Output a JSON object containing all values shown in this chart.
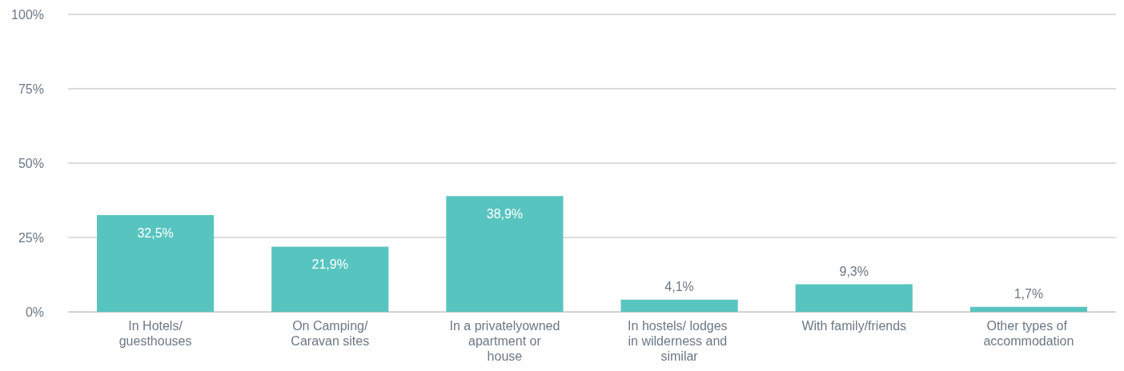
{
  "chart_data": {
    "type": "bar",
    "categories": [
      "In Hotels/guesthouses",
      "On Camping/Caravan sites",
      "In a privatelyowned apartment or house",
      "In hostels/ lodges in wilderness and similar",
      "With family/friends",
      "Other types of accommodation"
    ],
    "values": [
      32.5,
      21.9,
      38.9,
      4.1,
      9.3,
      1.7
    ],
    "value_labels": [
      "32,5%",
      "21,9%",
      "38,9%",
      "4,1%",
      "9,3%",
      "1,7%"
    ],
    "color": "#58c4bf",
    "ylim": [
      0,
      100
    ],
    "yticks": [
      {
        "value": 0,
        "label": "0%"
      },
      {
        "value": 25,
        "label": "25%"
      },
      {
        "value": 50,
        "label": "50%"
      },
      {
        "value": 75,
        "label": "75%"
      },
      {
        "value": 100,
        "label": "100%"
      }
    ],
    "grid": "y"
  }
}
